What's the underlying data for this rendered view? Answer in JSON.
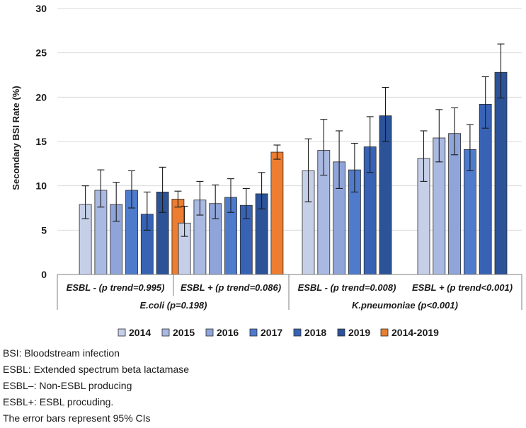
{
  "chart_data": {
    "type": "bar",
    "ylabel": "Secondary BSI Rate (%)",
    "ylim": [
      0,
      30
    ],
    "yticks": [
      0,
      5,
      10,
      15,
      20,
      25,
      30
    ],
    "grid": true,
    "legend_position": "bottom",
    "categories": [
      "ESBL - (p trend=0.995)",
      "ESBL + (p trend=0.086)",
      "ESBL - (p trend=0.008)",
      "ESBL + (p trend<0.001)"
    ],
    "groups": [
      {
        "label": "E.coli (p=0.198)",
        "categories": [
          0,
          1
        ]
      },
      {
        "label": "K.pneumoniae (p<0.001)",
        "categories": [
          2,
          3
        ]
      }
    ],
    "series": [
      {
        "name": "2014",
        "color": "#c5cfe8",
        "values": [
          7.9,
          5.8,
          11.7,
          13.1
        ],
        "ci_low": [
          6.3,
          4.3,
          8.2,
          10.5
        ],
        "ci_high": [
          10.0,
          7.7,
          15.3,
          16.2
        ]
      },
      {
        "name": "2015",
        "color": "#a9b9e1",
        "values": [
          9.5,
          8.4,
          14.0,
          15.4
        ],
        "ci_low": [
          7.6,
          6.7,
          11.2,
          12.7
        ],
        "ci_high": [
          11.8,
          10.5,
          17.5,
          18.6
        ]
      },
      {
        "name": "2016",
        "color": "#8fa4d8",
        "values": [
          7.9,
          8.0,
          12.7,
          15.9
        ],
        "ci_low": [
          6.0,
          6.3,
          9.7,
          13.5
        ],
        "ci_high": [
          10.4,
          10.1,
          16.2,
          18.8
        ]
      },
      {
        "name": "2017",
        "color": "#4e7bcc",
        "values": [
          9.5,
          8.7,
          11.8,
          14.1
        ],
        "ci_low": [
          7.5,
          7.0,
          9.3,
          11.7
        ],
        "ci_high": [
          11.7,
          10.8,
          14.8,
          16.9
        ]
      },
      {
        "name": "2018",
        "color": "#3863b5",
        "values": [
          6.8,
          7.8,
          14.4,
          19.2
        ],
        "ci_low": [
          5.0,
          6.3,
          11.5,
          16.5
        ],
        "ci_high": [
          9.3,
          9.7,
          17.8,
          22.3
        ]
      },
      {
        "name": "2019",
        "color": "#2c5298",
        "values": [
          9.3,
          9.1,
          17.9,
          22.8
        ],
        "ci_low": [
          7.0,
          7.4,
          15.0,
          19.9
        ],
        "ci_high": [
          12.1,
          11.5,
          21.1,
          26.0
        ]
      },
      {
        "name": "2014-2019",
        "color": "#ec7d31",
        "values": [
          8.5,
          13.8,
          null,
          null
        ],
        "ci_low": [
          7.6,
          13.0,
          null,
          null
        ],
        "ci_high": [
          9.4,
          14.6,
          null,
          null
        ]
      }
    ]
  },
  "notes": [
    "BSI: Bloodstream infection",
    "ESBL: Extended spectrum beta lactamase",
    "ESBL–: Non-ESBL producing",
    "ESBL+: ESBL procuding.",
    "The error bars represent 95% CIs"
  ]
}
